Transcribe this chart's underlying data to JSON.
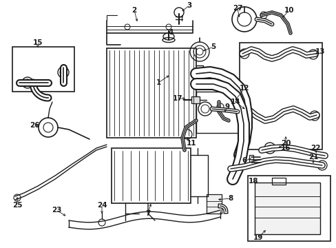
{
  "bg_color": "#ffffff",
  "lc": "#1a1a1a",
  "figw": 4.89,
  "figh": 3.6,
  "dpi": 100
}
